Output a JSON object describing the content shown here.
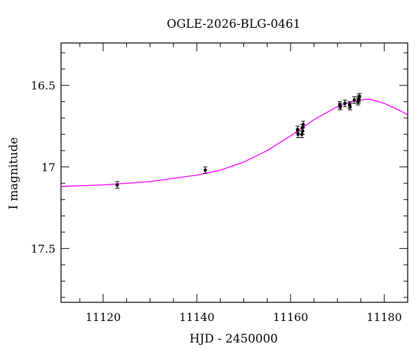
{
  "chart_data": {
    "type": "scatter",
    "title": "OGLE-2026-BLG-0461",
    "xlabel": "HJD - 2450000",
    "ylabel": "I magnitude",
    "xlim": [
      11111,
      11185
    ],
    "ylim": [
      17.83,
      16.24
    ],
    "y_inverted": true,
    "x_ticks": [
      11120,
      11140,
      11160,
      11180
    ],
    "x_tick_labels": [
      "11120",
      "11140",
      "11160",
      "11180"
    ],
    "y_ticks": [
      16.5,
      17,
      17.5
    ],
    "y_tick_labels": [
      "16.5",
      "17",
      "17.5"
    ],
    "grid": false,
    "series": [
      {
        "kind": "points",
        "color": "#000000",
        "points": [
          {
            "x": 11123.0,
            "y": 17.11,
            "err": 0.02
          },
          {
            "x": 11141.8,
            "y": 17.02,
            "err": 0.02
          },
          {
            "x": 11161.5,
            "y": 16.77,
            "err": 0.02
          },
          {
            "x": 11161.6,
            "y": 16.8,
            "err": 0.02
          },
          {
            "x": 11162.4,
            "y": 16.8,
            "err": 0.02
          },
          {
            "x": 11162.5,
            "y": 16.76,
            "err": 0.02
          },
          {
            "x": 11162.6,
            "y": 16.78,
            "err": 0.02
          },
          {
            "x": 11162.7,
            "y": 16.74,
            "err": 0.02
          },
          {
            "x": 11170.5,
            "y": 16.62,
            "err": 0.02
          },
          {
            "x": 11170.6,
            "y": 16.63,
            "err": 0.02
          },
          {
            "x": 11171.6,
            "y": 16.61,
            "err": 0.02
          },
          {
            "x": 11172.6,
            "y": 16.62,
            "err": 0.02
          },
          {
            "x": 11172.7,
            "y": 16.63,
            "err": 0.02
          },
          {
            "x": 11173.6,
            "y": 16.59,
            "err": 0.02
          },
          {
            "x": 11174.4,
            "y": 16.6,
            "err": 0.02
          },
          {
            "x": 11174.5,
            "y": 16.59,
            "err": 0.02
          },
          {
            "x": 11174.6,
            "y": 16.58,
            "err": 0.02
          },
          {
            "x": 11174.7,
            "y": 16.57,
            "err": 0.02
          }
        ]
      },
      {
        "kind": "model",
        "color": "#ff00ff",
        "points": [
          {
            "x": 11111,
            "y": 17.12
          },
          {
            "x": 11120,
            "y": 17.11
          },
          {
            "x": 11130,
            "y": 17.09
          },
          {
            "x": 11140,
            "y": 17.05
          },
          {
            "x": 11145,
            "y": 17.02
          },
          {
            "x": 11150,
            "y": 16.97
          },
          {
            "x": 11155,
            "y": 16.9
          },
          {
            "x": 11160,
            "y": 16.81
          },
          {
            "x": 11165,
            "y": 16.71
          },
          {
            "x": 11170,
            "y": 16.63
          },
          {
            "x": 11173,
            "y": 16.6
          },
          {
            "x": 11176,
            "y": 16.585
          },
          {
            "x": 11177,
            "y": 16.585
          },
          {
            "x": 11180,
            "y": 16.61
          },
          {
            "x": 11183,
            "y": 16.65
          },
          {
            "x": 11185,
            "y": 16.68
          }
        ]
      }
    ]
  }
}
